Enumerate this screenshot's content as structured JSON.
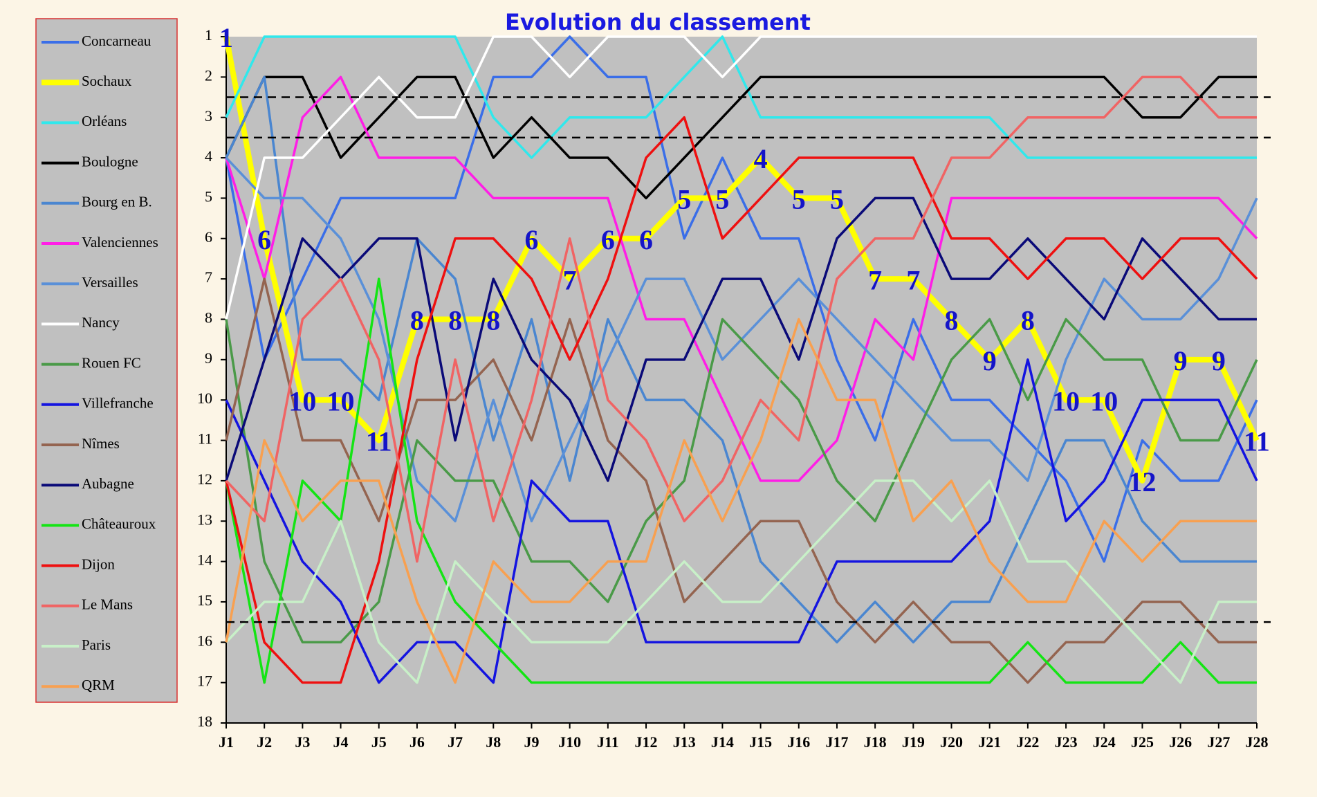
{
  "chart_data": {
    "type": "line",
    "title": "Evolution du classement",
    "categories": [
      "J1",
      "J2",
      "J3",
      "J4",
      "J5",
      "J6",
      "J7",
      "J8",
      "J9",
      "J10",
      "J11",
      "J12",
      "J13",
      "J14",
      "J15",
      "J16",
      "J17",
      "J18",
      "J19",
      "J20",
      "J21",
      "J22",
      "J23",
      "J24",
      "J25",
      "J26",
      "J27",
      "J28"
    ],
    "ylim": [
      1,
      18
    ],
    "y_inverted": true,
    "yticks": [
      1,
      2,
      3,
      4,
      5,
      6,
      7,
      8,
      9,
      10,
      11,
      12,
      13,
      14,
      15,
      16,
      17,
      18
    ],
    "reference_lines": [
      2.5,
      3.5,
      15.5
    ],
    "legend": "left",
    "series": [
      {
        "name": "Concarneau",
        "color": "#3a6ee8",
        "values": [
          4,
          9,
          7,
          5,
          5,
          5,
          5,
          2,
          2,
          1,
          2,
          2,
          6,
          4,
          6,
          6,
          9,
          11,
          8,
          10,
          10,
          11,
          12,
          14,
          11,
          12,
          12,
          10
        ]
      },
      {
        "name": "Sochaux",
        "color": "#ffff00",
        "line_width": 8,
        "show_labels": true,
        "values": [
          1,
          6,
          10,
          10,
          11,
          8,
          8,
          8,
          6,
          7,
          6,
          6,
          5,
          5,
          4,
          5,
          5,
          7,
          7,
          8,
          9,
          8,
          10,
          10,
          12,
          9,
          9,
          11
        ]
      },
      {
        "name": "Orléans",
        "color": "#30e8ec",
        "values": [
          3,
          1,
          1,
          1,
          1,
          1,
          1,
          3,
          4,
          3,
          3,
          3,
          2,
          1,
          3,
          3,
          3,
          3,
          3,
          3,
          3,
          4,
          4,
          4,
          4,
          4,
          4,
          4
        ]
      },
      {
        "name": "Boulogne",
        "color": "#000000",
        "values": [
          4,
          2,
          2,
          4,
          3,
          2,
          2,
          4,
          3,
          4,
          4,
          5,
          4,
          3,
          2,
          2,
          2,
          2,
          2,
          2,
          2,
          2,
          2,
          2,
          3,
          3,
          2,
          2
        ]
      },
      {
        "name": "Bourg en B.",
        "color": "#4a86d0",
        "values": [
          4,
          2,
          9,
          9,
          10,
          6,
          7,
          11,
          8,
          12,
          8,
          10,
          10,
          11,
          14,
          15,
          16,
          15,
          16,
          15,
          15,
          13,
          11,
          11,
          13,
          14,
          14,
          14
        ]
      },
      {
        "name": "Valenciennes",
        "color": "#ff1ee6",
        "values": [
          4,
          7,
          3,
          2,
          4,
          4,
          4,
          5,
          5,
          5,
          5,
          8,
          8,
          10,
          12,
          12,
          11,
          8,
          9,
          5,
          5,
          5,
          5,
          5,
          5,
          5,
          5,
          6
        ]
      },
      {
        "name": "Versailles",
        "color": "#5a90d8",
        "values": [
          4,
          5,
          5,
          6,
          8,
          12,
          13,
          10,
          13,
          11,
          9,
          7,
          7,
          9,
          8,
          7,
          8,
          9,
          10,
          11,
          11,
          12,
          9,
          7,
          8,
          8,
          7,
          5
        ]
      },
      {
        "name": "Nancy",
        "color": "#ffffff",
        "values": [
          8,
          4,
          4,
          3,
          2,
          3,
          3,
          1,
          1,
          2,
          1,
          1,
          1,
          2,
          1,
          1,
          1,
          1,
          1,
          1,
          1,
          1,
          1,
          1,
          1,
          1,
          1,
          1
        ]
      },
      {
        "name": "Rouen FC",
        "color": "#4a9a48",
        "values": [
          8,
          14,
          16,
          16,
          15,
          11,
          12,
          12,
          14,
          14,
          15,
          13,
          12,
          8,
          9,
          10,
          12,
          13,
          11,
          9,
          8,
          10,
          8,
          9,
          9,
          11,
          11,
          9
        ]
      },
      {
        "name": "Villefranche",
        "color": "#1414e0",
        "values": [
          10,
          12,
          14,
          15,
          17,
          16,
          16,
          17,
          12,
          13,
          13,
          16,
          16,
          16,
          16,
          16,
          14,
          14,
          14,
          14,
          13,
          9,
          13,
          12,
          10,
          10,
          10,
          12
        ]
      },
      {
        "name": "Nîmes",
        "color": "#946450",
        "values": [
          11,
          7,
          11,
          11,
          13,
          10,
          10,
          9,
          11,
          8,
          11,
          12,
          15,
          14,
          13,
          13,
          15,
          16,
          15,
          16,
          16,
          17,
          16,
          16,
          15,
          15,
          16,
          16
        ]
      },
      {
        "name": "Aubagne",
        "color": "#0a0a78",
        "values": [
          12,
          9,
          6,
          7,
          6,
          6,
          11,
          7,
          9,
          10,
          12,
          9,
          9,
          7,
          7,
          9,
          6,
          5,
          5,
          7,
          7,
          6,
          7,
          8,
          6,
          7,
          8,
          8
        ]
      },
      {
        "name": "Châteauroux",
        "color": "#14e414",
        "values": [
          12,
          17,
          12,
          13,
          7,
          13,
          15,
          16,
          17,
          17,
          17,
          17,
          17,
          17,
          17,
          17,
          17,
          17,
          17,
          17,
          17,
          16,
          17,
          17,
          17,
          16,
          17,
          17
        ]
      },
      {
        "name": "Dijon",
        "color": "#ee1010",
        "values": [
          12,
          16,
          17,
          17,
          14,
          9,
          6,
          6,
          7,
          9,
          7,
          4,
          3,
          6,
          5,
          4,
          4,
          4,
          4,
          6,
          6,
          7,
          6,
          6,
          7,
          6,
          6,
          7
        ]
      },
      {
        "name": "Le Mans",
        "color": "#f06464",
        "values": [
          12,
          13,
          8,
          7,
          9,
          14,
          9,
          13,
          10,
          6,
          10,
          11,
          13,
          12,
          10,
          11,
          7,
          6,
          6,
          4,
          4,
          3,
          3,
          3,
          2,
          2,
          3,
          3
        ]
      },
      {
        "name": "Paris",
        "color": "#c8f0c8",
        "values": [
          16,
          15,
          15,
          13,
          16,
          17,
          14,
          15,
          16,
          16,
          16,
          15,
          14,
          15,
          15,
          14,
          13,
          12,
          12,
          13,
          12,
          14,
          14,
          15,
          16,
          17,
          15,
          15
        ]
      },
      {
        "name": "QRM",
        "color": "#f8a050",
        "values": [
          16,
          11,
          13,
          12,
          12,
          15,
          17,
          14,
          15,
          15,
          14,
          14,
          11,
          13,
          11,
          8,
          10,
          10,
          13,
          12,
          14,
          15,
          15,
          13,
          14,
          13,
          13,
          13
        ]
      }
    ]
  }
}
